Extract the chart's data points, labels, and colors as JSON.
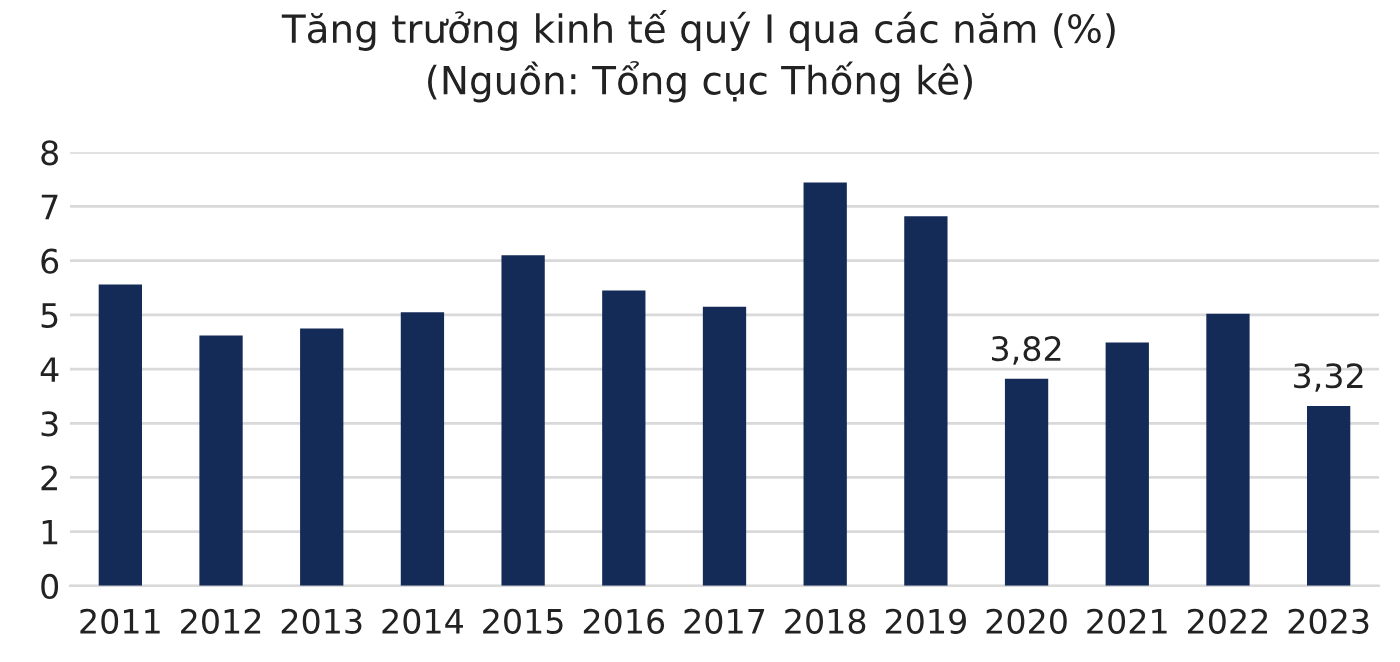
{
  "chart_data": {
    "type": "bar",
    "title": "Tăng trưởng kinh tế quý I qua các năm (%)\n(Nguồn: Tổng cục Thống kê)",
    "categories": [
      "2011",
      "2012",
      "2013",
      "2014",
      "2015",
      "2016",
      "2017",
      "2018",
      "2019",
      "2020",
      "2021",
      "2022",
      "2023"
    ],
    "values": [
      5.56,
      4.62,
      4.75,
      5.05,
      6.1,
      5.45,
      5.15,
      7.44,
      6.82,
      3.82,
      4.49,
      5.02,
      3.32
    ],
    "value_labels": [
      null,
      null,
      null,
      null,
      null,
      null,
      null,
      null,
      null,
      "3,82",
      null,
      null,
      "3,32"
    ],
    "color": "#152b57",
    "ylim": [
      0,
      8
    ],
    "yticks": [
      0,
      1,
      2,
      3,
      4,
      5,
      6,
      7,
      8
    ],
    "grid": "y"
  }
}
